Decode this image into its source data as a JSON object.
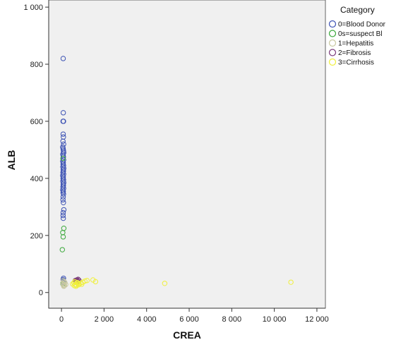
{
  "chart_data": {
    "type": "scatter",
    "xlabel": "CREA",
    "ylabel": "ALB",
    "xlim": [
      -600,
      12400
    ],
    "ylim": [
      -55,
      1025
    ],
    "x_ticks": [
      0,
      2000,
      4000,
      6000,
      8000,
      10000,
      12000
    ],
    "x_tick_labels": [
      "0",
      "2 000",
      "4 000",
      "6 000",
      "8 000",
      "10 000",
      "12 000"
    ],
    "y_ticks": [
      0,
      200,
      400,
      600,
      800,
      1000
    ],
    "y_tick_labels": [
      "0",
      "200",
      "400",
      "600",
      "800",
      "1 000"
    ],
    "grid": false,
    "legend": {
      "title": "Category",
      "placement": "right"
    },
    "series": [
      {
        "name": "0=Blood Donor",
        "color": "#3c52b4",
        "points": [
          [
            80,
            820
          ],
          [
            85,
            630
          ],
          [
            75,
            600
          ],
          [
            95,
            600
          ],
          [
            80,
            555
          ],
          [
            90,
            545
          ],
          [
            70,
            530
          ],
          [
            100,
            520
          ],
          [
            60,
            510
          ],
          [
            75,
            505
          ],
          [
            85,
            500
          ],
          [
            95,
            495
          ],
          [
            105,
            490
          ],
          [
            65,
            485
          ],
          [
            80,
            480
          ],
          [
            90,
            475
          ],
          [
            70,
            470
          ],
          [
            100,
            465
          ],
          [
            60,
            460
          ],
          [
            85,
            455
          ],
          [
            75,
            450
          ],
          [
            95,
            445
          ],
          [
            65,
            440
          ],
          [
            105,
            435
          ],
          [
            80,
            430
          ],
          [
            90,
            425
          ],
          [
            70,
            420
          ],
          [
            100,
            415
          ],
          [
            60,
            410
          ],
          [
            85,
            405
          ],
          [
            75,
            400
          ],
          [
            95,
            395
          ],
          [
            65,
            390
          ],
          [
            105,
            385
          ],
          [
            80,
            380
          ],
          [
            90,
            375
          ],
          [
            70,
            370
          ],
          [
            100,
            365
          ],
          [
            60,
            360
          ],
          [
            85,
            355
          ],
          [
            75,
            350
          ],
          [
            95,
            345
          ],
          [
            80,
            335
          ],
          [
            70,
            325
          ],
          [
            90,
            315
          ],
          [
            110,
            290
          ],
          [
            80,
            280
          ],
          [
            75,
            270
          ],
          [
            85,
            260
          ],
          [
            95,
            50
          ],
          [
            75,
            45
          ],
          [
            85,
            40
          ],
          [
            100,
            35
          ]
        ]
      },
      {
        "name": "0s=suspect Bl",
        "color": "#3aa83a",
        "points": [
          [
            75,
            470
          ],
          [
            110,
            225
          ],
          [
            60,
            210
          ],
          [
            80,
            195
          ],
          [
            40,
            150
          ],
          [
            65,
            30
          ]
        ]
      },
      {
        "name": "1=Hepatitis",
        "color": "#c8c8a0",
        "points": [
          [
            80,
            42
          ],
          [
            120,
            38
          ],
          [
            160,
            35
          ],
          [
            60,
            33
          ],
          [
            100,
            30
          ],
          [
            200,
            28
          ],
          [
            90,
            26
          ],
          [
            140,
            24
          ],
          [
            110,
            22
          ]
        ]
      },
      {
        "name": "2=Fibrosis",
        "color": "#7a3a7a",
        "points": [
          [
            650,
            42
          ],
          [
            720,
            44
          ],
          [
            780,
            46
          ],
          [
            690,
            40
          ],
          [
            750,
            41
          ],
          [
            820,
            43
          ],
          [
            700,
            38
          ],
          [
            760,
            39
          ]
        ]
      },
      {
        "name": "3=Cirrhosis",
        "color": "#f0f03a",
        "points": [
          [
            520,
            30
          ],
          [
            580,
            34
          ],
          [
            620,
            38
          ],
          [
            650,
            28
          ],
          [
            700,
            26
          ],
          [
            760,
            32
          ],
          [
            820,
            30
          ],
          [
            900,
            33
          ],
          [
            1000,
            36
          ],
          [
            1100,
            40
          ],
          [
            1200,
            42
          ],
          [
            1480,
            44
          ],
          [
            1600,
            38
          ],
          [
            4850,
            32
          ],
          [
            10780,
            36
          ],
          [
            600,
            24
          ],
          [
            680,
            22
          ],
          [
            740,
            35
          ],
          [
            800,
            27
          ],
          [
            950,
            29
          ]
        ]
      }
    ]
  }
}
